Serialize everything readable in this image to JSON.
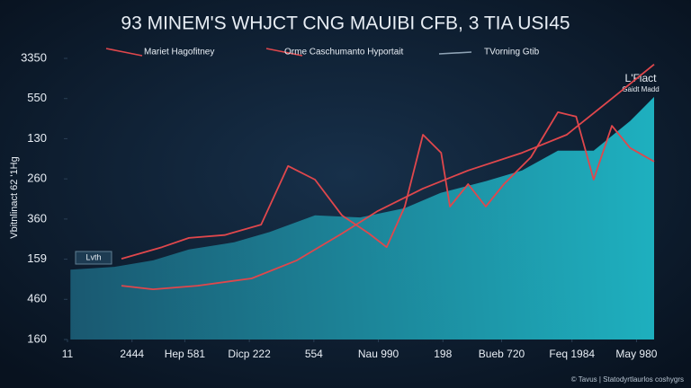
{
  "chart_data": {
    "type": "line",
    "title": "93 MINEM'S WHJCT CNG MAUIBI CFB, 3 TIA USI45",
    "y_label": "Vbitnlinact 62 '1Hg",
    "annotations": [
      "L'Fiact",
      "Gaidt Madd",
      "Lvth"
    ],
    "footer": "© Tavus | Statodyrtlaurlos coshygrs",
    "grid": false,
    "xlim": [
      0,
      100
    ],
    "xticks": [
      {
        "value": 0,
        "label": "11"
      },
      {
        "value": 11,
        "label": "2444"
      },
      {
        "value": 20,
        "label": "Hep 581"
      },
      {
        "value": 31,
        "label": "Dicp 222"
      },
      {
        "value": 42,
        "label": "554"
      },
      {
        "value": 53,
        "label": "Nau 990"
      },
      {
        "value": 64,
        "label": "198"
      },
      {
        "value": 74,
        "label": "Bueb 720"
      },
      {
        "value": 86,
        "label": "Feq 1984"
      },
      {
        "value": 97,
        "label": "May 980"
      }
    ],
    "ylim": [
      0,
      7
    ],
    "yticks": [
      {
        "value": 7,
        "label": "3350"
      },
      {
        "value": 6,
        "label": "550"
      },
      {
        "value": 5,
        "label": "130"
      },
      {
        "value": 4,
        "label": "260"
      },
      {
        "value": 3,
        "label": "360"
      },
      {
        "value": 2,
        "label": "159"
      },
      {
        "value": 1,
        "label": "460"
      },
      {
        "value": 0,
        "label": "160"
      }
    ],
    "series": [
      {
        "name": "Mariet Hagofitney",
        "color": "#e0474c",
        "area": false,
        "x": [
          9.2,
          16.1,
          20.7,
          26.8,
          33.0,
          37.6,
          42.2,
          46.8,
          51.4,
          54.4,
          57.5,
          60.6,
          63.7,
          65.2,
          68.3,
          71.3,
          74.4,
          79.0,
          83.6,
          86.7,
          89.7,
          92.8,
          95.9,
          100
        ],
        "values": [
          2.01,
          2.3,
          2.53,
          2.6,
          2.86,
          4.32,
          3.98,
          3.09,
          2.64,
          2.3,
          3.31,
          5.1,
          4.65,
          3.31,
          3.87,
          3.31,
          3.87,
          4.54,
          5.66,
          5.55,
          3.98,
          5.32,
          4.77,
          4.43
        ]
      },
      {
        "name": "Orme Caschumanto Hyportait",
        "color": "#e0474c",
        "area": false,
        "x": [
          9.2,
          14.6,
          22.2,
          31.4,
          39.1,
          46.8,
          52.9,
          60.6,
          68.3,
          77.5,
          85.1,
          92.8,
          100
        ],
        "values": [
          1.34,
          1.25,
          1.34,
          1.52,
          1.97,
          2.64,
          3.2,
          3.76,
          4.21,
          4.65,
          5.1,
          6.0,
          6.85
        ]
      },
      {
        "name": "TVorning Gtib",
        "color": "#1fb3c4",
        "area": true,
        "x": [
          0.5,
          8,
          14.6,
          20.7,
          28.4,
          34.5,
          42.2,
          49.9,
          57.5,
          63.6,
          71.3,
          77.5,
          83.6,
          89.7,
          95.9,
          100
        ],
        "values": [
          1.74,
          1.81,
          1.97,
          2.24,
          2.42,
          2.68,
          3.09,
          3.04,
          3.27,
          3.65,
          3.94,
          4.21,
          4.7,
          4.7,
          5.44,
          6.04
        ]
      }
    ]
  }
}
